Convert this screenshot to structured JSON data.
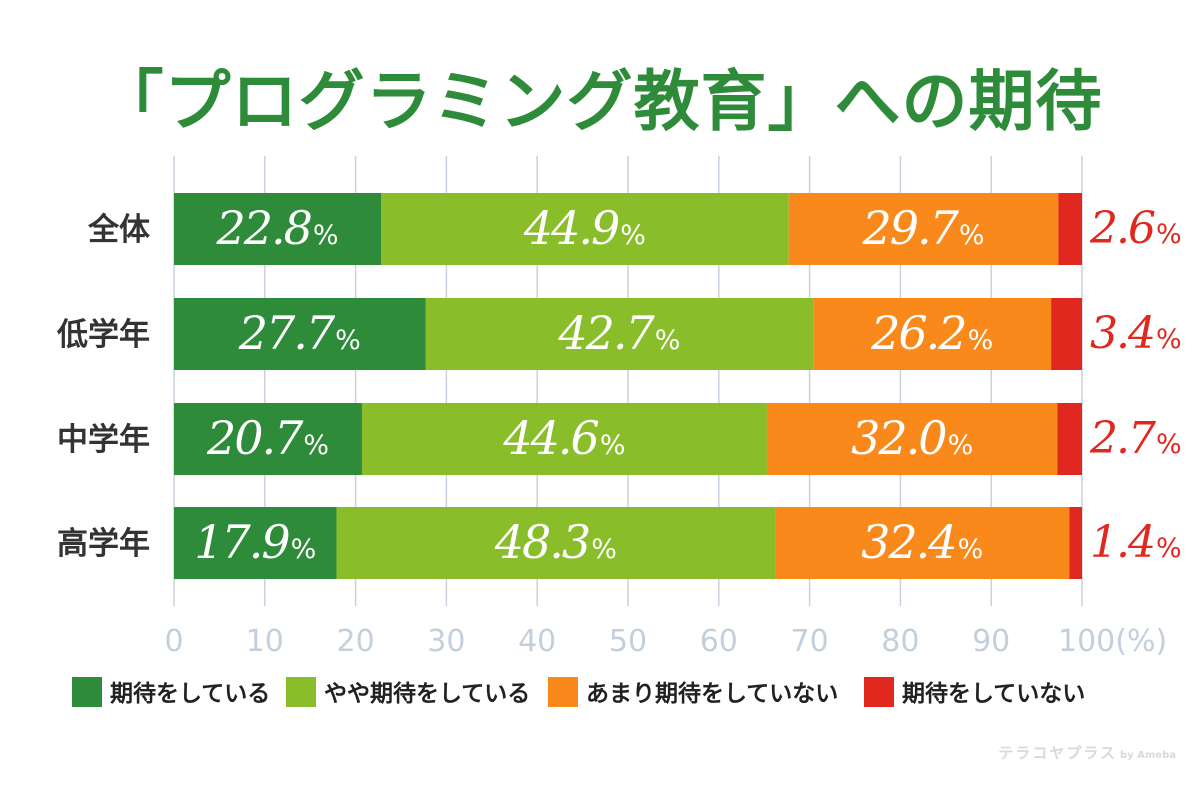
{
  "chart_data": {
    "type": "bar",
    "orientation": "horizontal-stacked",
    "title": "「プログラミング教育」への期待",
    "categories": [
      "全体",
      "低学年",
      "中学年",
      "高学年"
    ],
    "series": [
      {
        "name": "期待をしている",
        "color": "#2e8b3a",
        "values": [
          22.8,
          27.7,
          20.7,
          17.9
        ]
      },
      {
        "name": "やや期待をしている",
        "color": "#8abd2a",
        "values": [
          44.9,
          42.7,
          44.6,
          48.3
        ]
      },
      {
        "name": "あまり期待をしていない",
        "color": "#f8891a",
        "values": [
          29.7,
          26.2,
          32.0,
          32.4
        ]
      },
      {
        "name": "期待をしていない",
        "color": "#e0281e",
        "values": [
          2.6,
          3.4,
          2.7,
          1.4
        ]
      }
    ],
    "x_ticks": [
      "0",
      "10",
      "20",
      "30",
      "40",
      "50",
      "60",
      "70",
      "80",
      "90",
      "100"
    ],
    "x_unit": "(%)",
    "xlim": [
      0,
      100
    ],
    "value_suffix": "%",
    "grid": true,
    "legend_position": "bottom"
  },
  "watermark": {
    "text": "テラコヤプラス",
    "by": "by Ameba"
  },
  "colors": {
    "title": "#2e8b3a",
    "grid": "#c8d2de",
    "tick_label": "#c3cfdc",
    "category_label": "#333333",
    "outside_label": "#e0281e"
  }
}
